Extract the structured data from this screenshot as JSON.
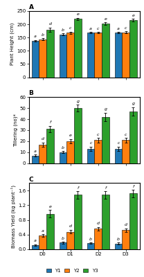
{
  "chart_data": [
    {
      "type": "bar",
      "title": "A",
      "ylabel": "Plant Height (cm)",
      "categories": [
        "D0",
        "D1",
        "D2",
        "D3"
      ],
      "series": [
        {
          "name": "Y1",
          "values": [
            138,
            162,
            168,
            168
          ],
          "errors": [
            3,
            3,
            3,
            3
          ],
          "annotations": [
            "a",
            "b",
            "a",
            "a"
          ]
        },
        {
          "name": "Y2",
          "values": [
            143,
            168,
            168,
            170
          ],
          "errors": [
            4,
            4,
            3,
            3
          ],
          "annotations": [
            "b",
            "c",
            "c",
            "c"
          ]
        },
        {
          "name": "Y3",
          "values": [
            180,
            220,
            202,
            215
          ],
          "errors": [
            8,
            5,
            5,
            5
          ],
          "annotations": [
            "d",
            "e",
            "e",
            "e"
          ]
        }
      ],
      "ylim": [
        0,
        250
      ],
      "yticks": [
        0,
        50,
        100,
        150,
        200,
        250
      ],
      "tick_labels": "y"
    },
    {
      "type": "bar",
      "title": "B",
      "ylabel": "Tillering (no)*",
      "categories": [
        "D0",
        "D1",
        "D2",
        "D3"
      ],
      "series": [
        {
          "name": "Y1",
          "values": [
            7,
            10,
            13,
            13
          ],
          "errors": [
            1,
            1,
            2,
            2
          ],
          "annotations": [
            "a",
            "b",
            "c",
            "c"
          ]
        },
        {
          "name": "Y2",
          "values": [
            17,
            20,
            21,
            21
          ],
          "errors": [
            2,
            2,
            2,
            2
          ],
          "annotations": [
            "d",
            "e",
            "c",
            "c"
          ]
        },
        {
          "name": "Y3",
          "values": [
            31,
            50,
            42,
            47
          ],
          "errors": [
            3,
            3,
            4,
            4
          ],
          "annotations": [
            "f",
            "g",
            "g",
            "g"
          ]
        }
      ],
      "ylim": [
        0,
        60
      ],
      "yticks": [
        0,
        10,
        20,
        30,
        40,
        50,
        60
      ],
      "tick_labels": "y"
    },
    {
      "type": "bar",
      "title": "C",
      "ylabel": "Biomass Yield (kg plant⁻¹)",
      "categories": [
        "D0",
        "D1",
        "D2",
        "D3"
      ],
      "series": [
        {
          "name": "Y1",
          "values": [
            0.12,
            0.18,
            0.17,
            0.16
          ],
          "errors": [
            0.02,
            0.02,
            0.02,
            0.02
          ],
          "annotations": [
            "a",
            "b",
            "b",
            "b"
          ]
        },
        {
          "name": "Y2",
          "values": [
            0.37,
            0.48,
            0.56,
            0.52
          ],
          "errors": [
            0.04,
            0.05,
            0.05,
            0.05
          ],
          "annotations": [
            "a",
            "d",
            "d",
            "d"
          ]
        },
        {
          "name": "Y3",
          "values": [
            0.97,
            1.48,
            1.48,
            1.52
          ],
          "errors": [
            0.1,
            0.1,
            0.1,
            0.1
          ],
          "annotations": [
            "e",
            "f",
            "f",
            "f"
          ]
        }
      ],
      "ylim": [
        0,
        1.8
      ],
      "yticks": [
        0.0,
        0.4,
        0.8,
        1.2,
        1.6
      ],
      "legend": "lower center"
    }
  ]
}
